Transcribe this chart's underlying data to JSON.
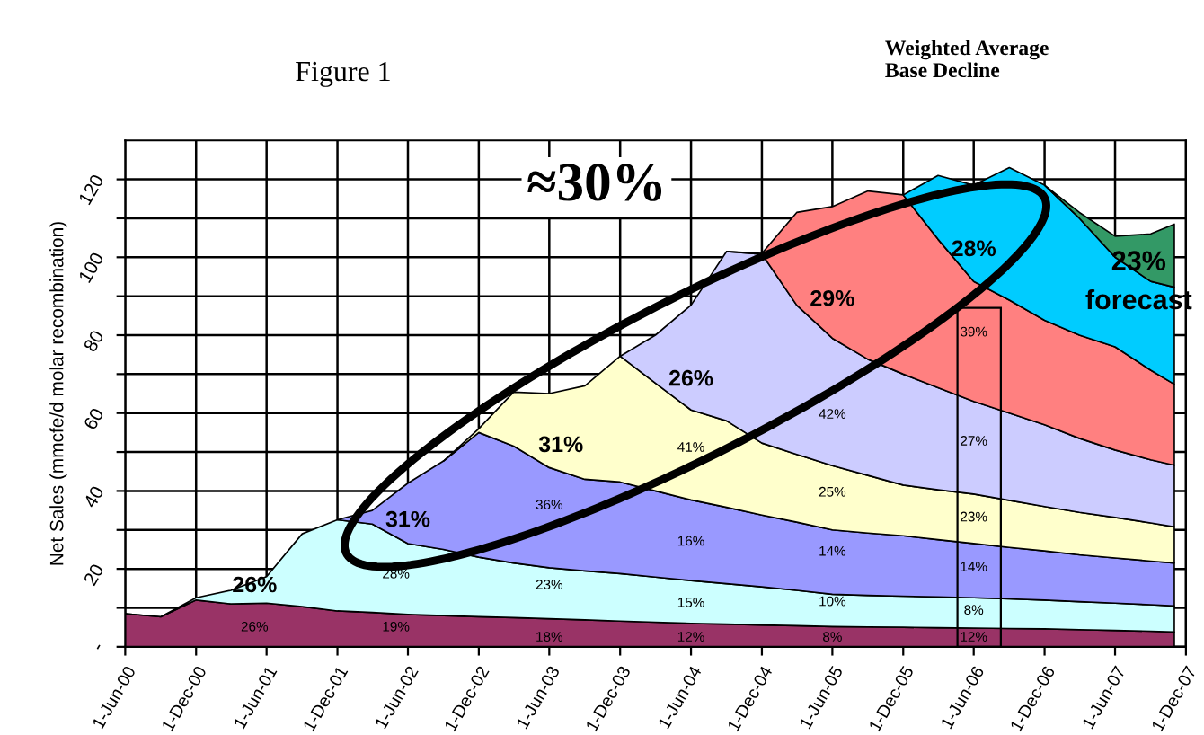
{
  "chart_data": {
    "type": "area",
    "stacked": true,
    "title": "Figure 1",
    "subtitle": "Weighted Average\nBase Decline",
    "ylabel": "Net Sales (mmcfe/d molar recombination)",
    "x": [
      "2000-06",
      "2000-09",
      "2000-12",
      "2001-03",
      "2001-06",
      "2001-09",
      "2001-12",
      "2002-03",
      "2002-06",
      "2002-09",
      "2002-12",
      "2003-03",
      "2003-06",
      "2003-09",
      "2003-12",
      "2004-03",
      "2004-06",
      "2004-09",
      "2004-12",
      "2005-03",
      "2005-06",
      "2005-09",
      "2005-12",
      "2006-03",
      "2006-06",
      "2006-09",
      "2006-12",
      "2007-03",
      "2007-06",
      "2007-09",
      "2007-11"
    ],
    "series": [
      {
        "color": "#993366",
        "values": [
          8.5,
          7.7,
          12.0,
          11.0,
          11.2,
          10.3,
          9.2,
          8.8,
          8.3,
          8.0,
          7.7,
          7.5,
          7.2,
          6.9,
          6.6,
          6.3,
          6.0,
          5.8,
          5.6,
          5.4,
          5.2,
          5.1,
          5.0,
          4.9,
          4.8,
          4.7,
          4.6,
          4.4,
          4.2,
          4.0,
          3.8
        ]
      },
      {
        "color": "#ccffff",
        "values": [
          0,
          0,
          0.6,
          3.5,
          6.8,
          18.7,
          23.4,
          22.7,
          18.2,
          17.0,
          15.3,
          14.0,
          13.1,
          12.6,
          12.2,
          11.6,
          11.0,
          10.4,
          9.8,
          9.1,
          8.3,
          8.1,
          8.0,
          7.9,
          7.8,
          7.6,
          7.4,
          7.2,
          7.0,
          6.8,
          6.7
        ]
      },
      {
        "color": "#9999ff",
        "values": [
          null,
          null,
          null,
          null,
          null,
          null,
          0,
          3.5,
          15.5,
          22.7,
          32.0,
          30.0,
          25.7,
          23.5,
          23.5,
          22.1,
          20.7,
          19.6,
          18.4,
          17.5,
          16.5,
          16.0,
          15.5,
          14.7,
          13.9,
          13.2,
          12.6,
          12.0,
          11.6,
          11.2,
          11.0
        ]
      },
      {
        "color": "#ffffcc",
        "values": [
          null,
          null,
          null,
          null,
          null,
          null,
          null,
          null,
          null,
          0,
          1.0,
          13.9,
          19.0,
          24.0,
          32.3,
          27.7,
          23.1,
          22.2,
          18.5,
          17.4,
          16.5,
          14.8,
          13.0,
          12.8,
          12.7,
          12.1,
          11.4,
          10.9,
          10.4,
          9.8,
          9.3
        ]
      },
      {
        "color": "#ccccff",
        "values": [
          null,
          null,
          null,
          null,
          null,
          null,
          null,
          null,
          null,
          null,
          null,
          null,
          null,
          null,
          0,
          12.3,
          26.9,
          43.5,
          48.5,
          38.3,
          32.7,
          29.8,
          28.5,
          26.2,
          23.8,
          22.4,
          21.0,
          19.0,
          17.3,
          16.2,
          15.8
        ]
      },
      {
        "color": "#ff8080",
        "values": [
          null,
          null,
          null,
          null,
          null,
          null,
          null,
          null,
          null,
          null,
          null,
          null,
          null,
          null,
          null,
          null,
          null,
          0,
          0.2,
          23.8,
          33.8,
          43.2,
          46.0,
          38.1,
          30.8,
          29.0,
          26.8,
          26.5,
          26.5,
          23.0,
          20.8
        ]
      },
      {
        "color": "#00ccff",
        "values": [
          null,
          null,
          null,
          null,
          null,
          null,
          null,
          null,
          null,
          null,
          null,
          null,
          null,
          null,
          null,
          null,
          null,
          null,
          null,
          null,
          null,
          null,
          0,
          16.4,
          24.7,
          34.0,
          34.7,
          30.0,
          23.0,
          22.8,
          24.9
        ]
      },
      {
        "color": "#339966",
        "values": [
          null,
          null,
          null,
          null,
          null,
          null,
          null,
          null,
          null,
          null,
          null,
          null,
          null,
          null,
          null,
          null,
          null,
          null,
          null,
          null,
          null,
          null,
          null,
          null,
          null,
          null,
          0,
          1.5,
          5.4,
          12.2,
          16.2
        ]
      }
    ],
    "xlim": [
      "2000-06-01",
      "2007-12-01"
    ],
    "xticks": [
      {
        "value": "2000-06-01",
        "label": "1-Jun-00"
      },
      {
        "value": "2000-12-01",
        "label": "1-Dec-00"
      },
      {
        "value": "2001-06-01",
        "label": "1-Jun-01"
      },
      {
        "value": "2001-12-01",
        "label": "1-Dec-01"
      },
      {
        "value": "2002-06-01",
        "label": "1-Jun-02"
      },
      {
        "value": "2002-12-01",
        "label": "1-Dec-02"
      },
      {
        "value": "2003-06-01",
        "label": "1-Jun-03"
      },
      {
        "value": "2003-12-01",
        "label": "1-Dec-03"
      },
      {
        "value": "2004-06-01",
        "label": "1-Jun-04"
      },
      {
        "value": "2004-12-01",
        "label": "1-Dec-04"
      },
      {
        "value": "2005-06-01",
        "label": "1-Jun-05"
      },
      {
        "value": "2005-12-01",
        "label": "1-Dec-05"
      },
      {
        "value": "2006-06-01",
        "label": "1-Jun-06"
      },
      {
        "value": "2006-12-01",
        "label": "1-Dec-06"
      },
      {
        "value": "2007-06-01",
        "label": "1-Jun-07"
      },
      {
        "value": "2007-12-01",
        "label": "1-Dec-07"
      }
    ],
    "ylim": [
      0,
      130
    ],
    "yticks": [
      {
        "value": 0,
        "label": "-"
      },
      {
        "value": 10,
        "label": null
      },
      20,
      {
        "value": 30,
        "label": null
      },
      40,
      {
        "value": 50,
        "label": null
      },
      60,
      {
        "value": 70,
        "label": null
      },
      80,
      {
        "value": 90,
        "label": null
      },
      100,
      {
        "value": 110,
        "label": null
      },
      120
    ],
    "grid": true,
    "annotations": [
      "26%",
      "31%",
      "31%",
      "26%",
      "29%",
      "28%",
      "23%",
      "forecast",
      "≈30%",
      "26%",
      "19%",
      "28%",
      "18%",
      "23%",
      "36%",
      "12%",
      "15%",
      "16%",
      "41%",
      "8%",
      "10%",
      "14%",
      "25%",
      "42%",
      "12%",
      "8%",
      "14%",
      "23%",
      "27%",
      "39%"
    ]
  }
}
